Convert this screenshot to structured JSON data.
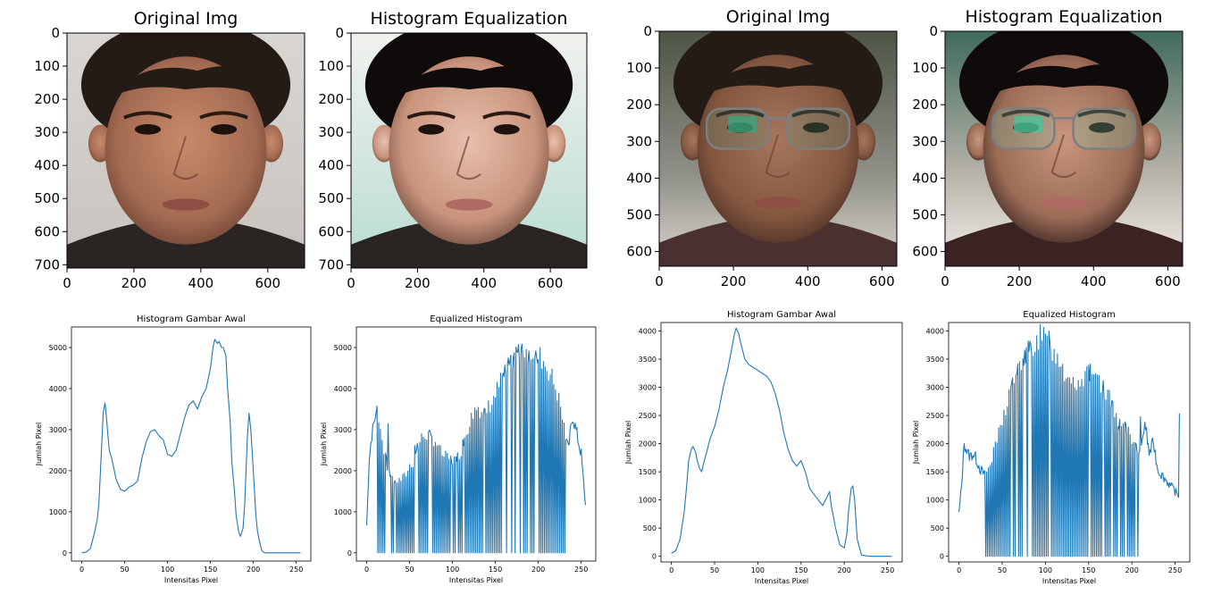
{
  "colors": {
    "line": "#1f77b4",
    "axis": "#000000"
  },
  "image_panels": [
    {
      "title": "Original Img",
      "xticks": [
        0,
        200,
        400,
        600
      ],
      "yticks": [
        0,
        100,
        200,
        300,
        400,
        500,
        600,
        700
      ],
      "xmax": 710,
      "ymax": 710,
      "variant": "face1-original"
    },
    {
      "title": "Histogram Equalization",
      "xticks": [
        0,
        200,
        400,
        600
      ],
      "yticks": [
        0,
        100,
        200,
        300,
        400,
        500,
        600,
        700
      ],
      "xmax": 710,
      "ymax": 710,
      "variant": "face1-equalized"
    },
    {
      "title": "Original Img",
      "xticks": [
        0,
        200,
        400,
        600
      ],
      "yticks": [
        0,
        100,
        200,
        300,
        400,
        500,
        600
      ],
      "xmax": 640,
      "ymax": 640,
      "variant": "face2-original"
    },
    {
      "title": "Histogram Equalization",
      "xticks": [
        0,
        200,
        400,
        600
      ],
      "yticks": [
        0,
        100,
        200,
        300,
        400,
        500,
        600
      ],
      "xmax": 640,
      "ymax": 640,
      "variant": "face2-equalized"
    }
  ],
  "chart_data": [
    {
      "type": "line",
      "title": "Histogram Gambar Awal",
      "xlabel": "Intensitas Pixel",
      "ylabel": "Jumlah Pixel",
      "xlim": [
        -12,
        267
      ],
      "ylim": [
        -200,
        5500
      ],
      "xticks": [
        0,
        50,
        100,
        150,
        200,
        250
      ],
      "yticks": [
        0,
        1000,
        2000,
        3000,
        4000,
        5000
      ],
      "x": [
        0,
        5,
        10,
        15,
        18,
        20,
        23,
        25,
        27,
        28,
        30,
        32,
        35,
        40,
        45,
        50,
        55,
        60,
        65,
        70,
        75,
        80,
        85,
        90,
        95,
        100,
        105,
        110,
        115,
        120,
        125,
        130,
        135,
        140,
        145,
        150,
        153,
        155,
        158,
        160,
        163,
        165,
        168,
        170,
        173,
        175,
        178,
        180,
        183,
        185,
        188,
        190,
        193,
        195,
        197,
        200,
        203,
        205,
        208,
        210,
        213,
        215,
        220,
        230,
        240,
        255
      ],
      "y": [
        0,
        20,
        100,
        500,
        800,
        1200,
        2500,
        3400,
        3650,
        3500,
        3000,
        2500,
        2300,
        1800,
        1550,
        1500,
        1600,
        1650,
        1750,
        2300,
        2700,
        2950,
        3000,
        2850,
        2750,
        2400,
        2350,
        2500,
        2900,
        3300,
        3600,
        3700,
        3500,
        3800,
        4000,
        4500,
        5000,
        5200,
        5100,
        5150,
        5000,
        5000,
        4800,
        4000,
        3200,
        2200,
        1500,
        900,
        500,
        400,
        600,
        1200,
        2800,
        3400,
        3000,
        2000,
        900,
        500,
        200,
        50,
        0,
        0,
        0,
        0,
        0,
        0
      ]
    },
    {
      "type": "line",
      "title": "Equalized Histogram",
      "xlabel": "Intensitas Pixel",
      "ylabel": "Jumlah Pixel",
      "xlim": [
        -12,
        267
      ],
      "ylim": [
        -200,
        5500
      ],
      "xticks": [
        0,
        50,
        100,
        150,
        200,
        250
      ],
      "yticks": [
        0,
        1000,
        2000,
        3000,
        4000,
        5000
      ],
      "seed": 7,
      "peak_spikes": [
        [
          12,
          3650
        ],
        [
          25,
          3300
        ],
        [
          56,
          2750
        ],
        [
          185,
          5200
        ],
        [
          195,
          5150
        ],
        [
          240,
          3500
        ]
      ],
      "envelope_x": [
        0,
        3,
        6,
        10,
        14,
        20,
        25,
        30,
        35,
        40,
        45,
        50,
        55,
        60,
        65,
        70,
        75,
        80,
        85,
        90,
        95,
        100,
        105,
        110,
        115,
        120,
        125,
        130,
        135,
        140,
        145,
        150,
        155,
        160,
        165,
        170,
        175,
        180,
        185,
        190,
        195,
        200,
        205,
        210,
        215,
        220,
        225,
        230,
        235,
        240,
        245,
        250,
        255
      ],
      "envelope_y": [
        700,
        2400,
        3000,
        3500,
        3300,
        2600,
        2100,
        1900,
        1800,
        1850,
        1950,
        2200,
        2300,
        2700,
        2950,
        3000,
        2900,
        2850,
        2600,
        2450,
        2400,
        2350,
        2400,
        2600,
        3000,
        3300,
        3600,
        3700,
        3550,
        3600,
        3800,
        4000,
        4300,
        4500,
        4700,
        4900,
        5100,
        5200,
        5150,
        5100,
        5100,
        5000,
        4900,
        4700,
        4500,
        4200,
        3800,
        3200,
        2600,
        3500,
        3000,
        2500,
        1200
      ],
      "zero_gaps": [
        [
          13,
          22
        ],
        [
          28,
          55
        ],
        [
          60,
          232
        ]
      ]
    },
    {
      "type": "line",
      "title": "Histogram Gambar Awal",
      "xlabel": "Intensitas Pixel",
      "ylabel": "Jumlah Pixel",
      "xlim": [
        -12,
        267
      ],
      "ylim": [
        -100,
        4150
      ],
      "xticks": [
        0,
        50,
        100,
        150,
        200,
        250
      ],
      "yticks": [
        0,
        500,
        1000,
        1500,
        2000,
        2500,
        3000,
        3500,
        4000
      ],
      "x": [
        0,
        5,
        10,
        15,
        18,
        20,
        23,
        25,
        28,
        30,
        33,
        35,
        38,
        40,
        45,
        50,
        55,
        60,
        65,
        70,
        73,
        75,
        78,
        80,
        85,
        90,
        95,
        100,
        105,
        110,
        115,
        120,
        125,
        130,
        135,
        140,
        145,
        150,
        155,
        160,
        165,
        170,
        175,
        180,
        183,
        185,
        190,
        195,
        200,
        203,
        205,
        208,
        210,
        212,
        215,
        220,
        230,
        240,
        255
      ],
      "y": [
        50,
        100,
        300,
        800,
        1300,
        1700,
        1900,
        1950,
        1850,
        1700,
        1550,
        1500,
        1700,
        1800,
        2100,
        2300,
        2600,
        3000,
        3300,
        3700,
        3950,
        4050,
        3950,
        3800,
        3500,
        3400,
        3350,
        3300,
        3250,
        3200,
        3100,
        2900,
        2600,
        2200,
        1900,
        1700,
        1600,
        1700,
        1500,
        1200,
        1100,
        1000,
        900,
        1050,
        1150,
        900,
        500,
        200,
        150,
        400,
        800,
        1200,
        1250,
        1000,
        300,
        20,
        0,
        0,
        0
      ]
    },
    {
      "type": "line",
      "title": "Equalized Histogram",
      "xlabel": "Intensitas Pixel",
      "ylabel": "Jumlah Pixel",
      "xlim": [
        -12,
        267
      ],
      "ylim": [
        -100,
        4150
      ],
      "xticks": [
        0,
        50,
        100,
        150,
        200,
        250
      ],
      "yticks": [
        0,
        500,
        1000,
        1500,
        2000,
        2500,
        3000,
        3500,
        4000
      ],
      "seed": 13,
      "peak_spikes": [
        [
          6,
          2150
        ],
        [
          96,
          4050
        ],
        [
          104,
          4000
        ],
        [
          150,
          3400
        ],
        [
          210,
          2750
        ],
        [
          225,
          2150
        ],
        [
          255,
          2750
        ]
      ],
      "envelope_x": [
        0,
        3,
        6,
        10,
        13,
        16,
        20,
        25,
        30,
        35,
        40,
        45,
        50,
        55,
        60,
        65,
        70,
        75,
        80,
        85,
        90,
        95,
        100,
        105,
        110,
        115,
        120,
        125,
        130,
        135,
        140,
        145,
        150,
        155,
        160,
        165,
        170,
        175,
        180,
        185,
        190,
        195,
        200,
        205,
        210,
        215,
        220,
        225,
        230,
        235,
        240,
        245,
        250,
        255
      ],
      "envelope_y": [
        800,
        1300,
        2100,
        1900,
        1850,
        1900,
        1800,
        1600,
        1500,
        1650,
        1900,
        2200,
        2500,
        2800,
        3100,
        3300,
        3500,
        3700,
        3800,
        3900,
        4000,
        4050,
        4000,
        3900,
        3800,
        3700,
        3500,
        3300,
        3200,
        3250,
        3300,
        3350,
        3400,
        3300,
        3200,
        3100,
        3000,
        2900,
        2700,
        2500,
        2400,
        2300,
        2200,
        2000,
        1800,
        2500,
        1900,
        2100,
        1600,
        1500,
        1400,
        1300,
        1200,
        1100
      ]
    }
  ]
}
